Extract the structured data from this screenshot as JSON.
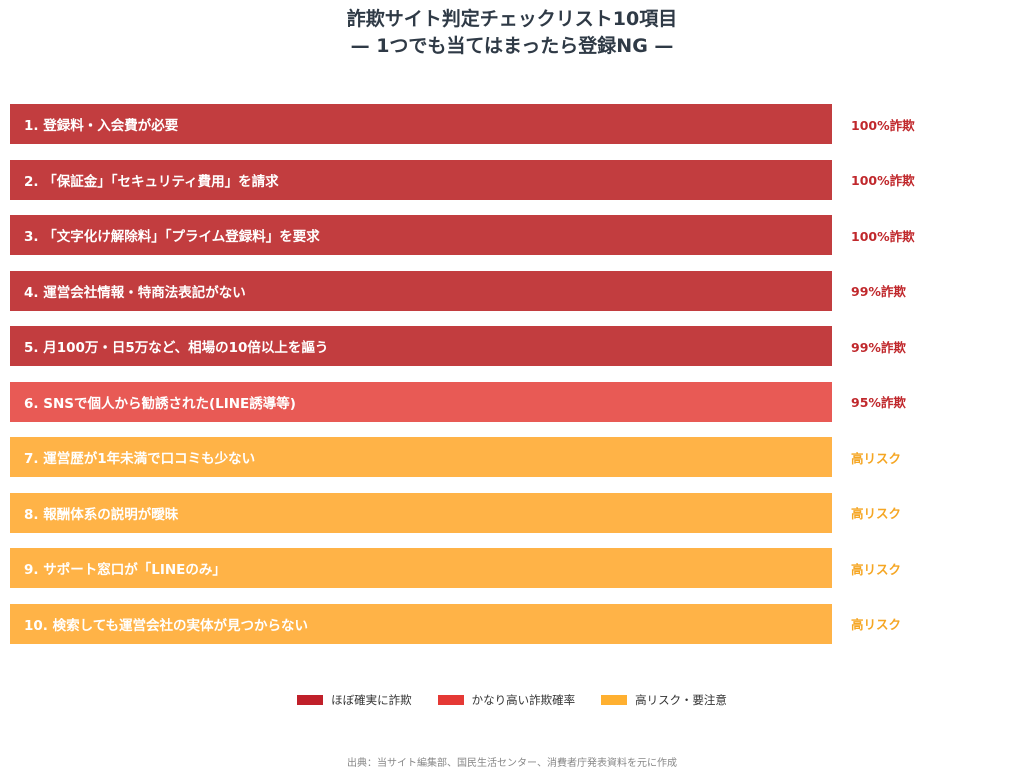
{
  "chart_data": {
    "type": "bar",
    "orientation": "horizontal",
    "title": "詐欺サイト判定チェックリスト10項目",
    "subtitle": "— 1つでも当てはまったら登録NG —",
    "categories": [
      "1. 登録料・入会費が必要",
      "2. 「保証金」「セキュリティ費用」を請求",
      "3. 「文字化け解除料」「プライム登録料」を要求",
      "4. 運営会社情報・特商法表記がない",
      "5. 月100万・日5万など、相場の10倍以上を謳う",
      "6. SNSで個人から勧誘された(LINE誘導等)",
      "7. 運営歴が1年未満で口コミも少ない",
      "8. 報酬体系の説明が曖昧",
      "9. サポート窓口が「LINEのみ」",
      "10. 検索しても運営会社の実体が見つからない"
    ],
    "value_labels": [
      "100%詐欺",
      "100%詐欺",
      "100%詐欺",
      "99%詐欺",
      "99%詐欺",
      "95%詐欺",
      "高リスク",
      "高リスク",
      "高リスク",
      "高リスク"
    ],
    "levels": [
      0,
      0,
      0,
      0,
      0,
      1,
      2,
      2,
      2,
      2
    ],
    "legend": [
      {
        "label": "ほぼ確実に詐欺",
        "color": "#c0202a"
      },
      {
        "label": "かなり高い詐欺確率",
        "color": "#e53935"
      },
      {
        "label": "高リスク・要注意",
        "color": "#ffb030"
      }
    ],
    "bar_colors": [
      "#c23d3f",
      "#e85a55",
      "#ffb347"
    ],
    "label_colors": [
      "#c0282c",
      "#c0282c",
      "#f5a623"
    ],
    "legend_placement": "bottom",
    "grid": false
  },
  "source": "出典：当サイト編集部、国民生活センター、消費者庁発表資料を元に作成"
}
